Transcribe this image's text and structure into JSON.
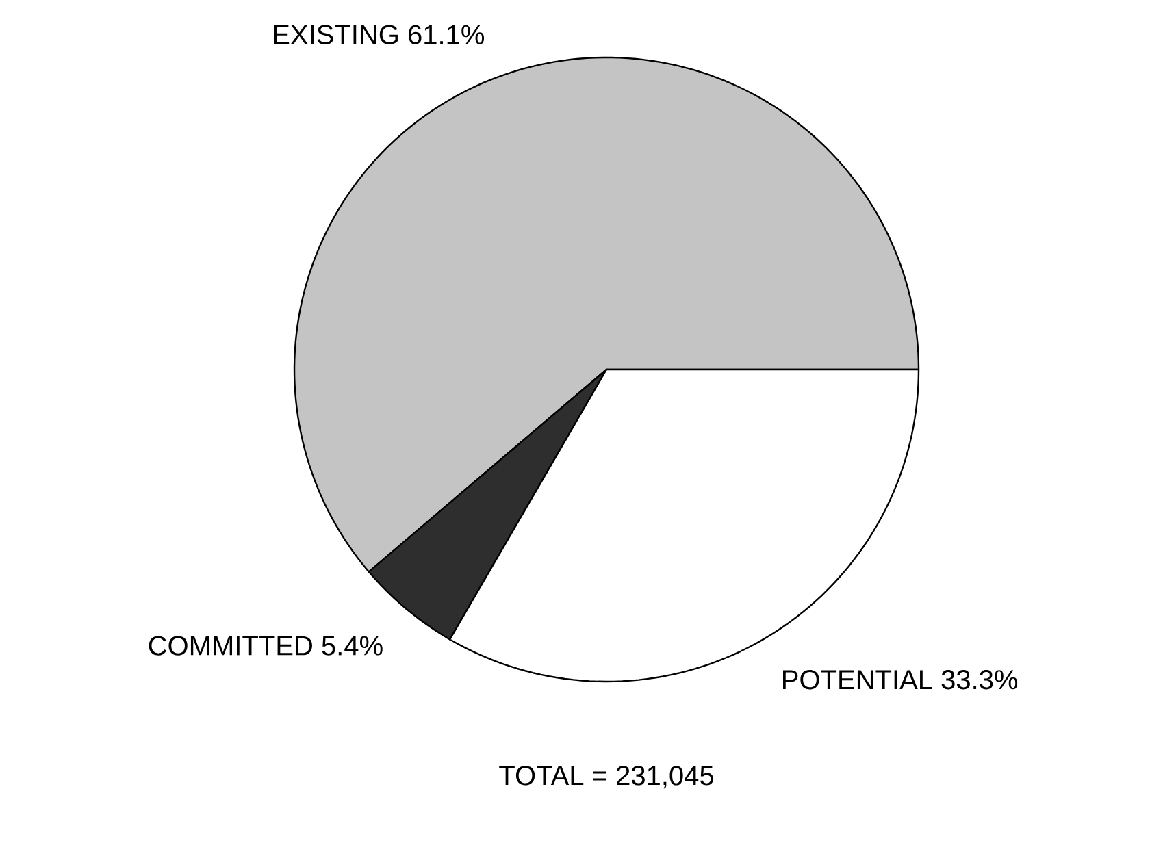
{
  "chart_data": {
    "type": "pie",
    "categories": [
      "EXISTING",
      "COMMITTED",
      "POTENTIAL"
    ],
    "values": [
      61.1,
      5.4,
      33.3
    ],
    "value_labels": [
      "61.1%",
      "5.4%",
      "33.3%"
    ],
    "colors": [
      "#c4c4c4",
      "#2e2e2e",
      "#ffffff"
    ],
    "annotations": [
      "TOTAL = 231,045"
    ]
  }
}
